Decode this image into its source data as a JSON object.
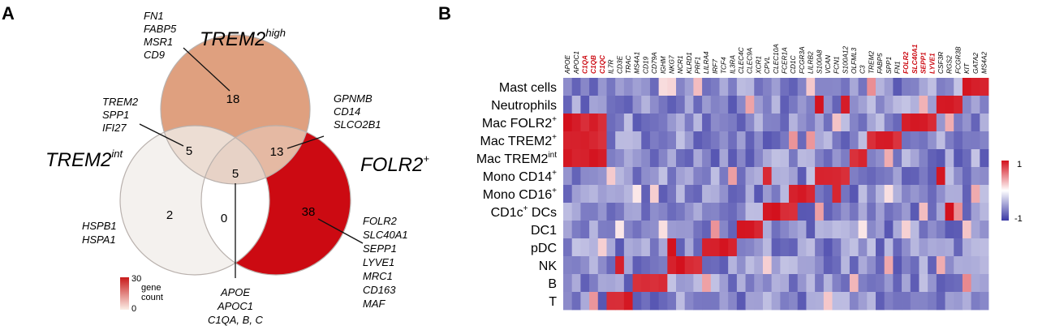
{
  "panels": {
    "a": "A",
    "b": "B"
  },
  "venn": {
    "sets": {
      "high": {
        "name": "TREM2",
        "sup": "high"
      },
      "int": {
        "name": "TREM2",
        "sup": "int"
      },
      "folr": {
        "name": "FOLR2",
        "sup": "+"
      }
    },
    "counts": {
      "high_only": "18",
      "high_int": "5",
      "high_folr": "13",
      "all": "5",
      "int_only": "2",
      "int_folr": "0",
      "folr_only": "38"
    },
    "genes": {
      "high_only": [
        "FN1",
        "FABP5",
        "MSR1",
        "CD9"
      ],
      "high_int": [
        "TREM2",
        "SPP1",
        "IFI27"
      ],
      "high_folr": [
        "GPNMB",
        "CD14",
        "SLCO2B1"
      ],
      "int_only": [
        "HSPB1",
        "HSPA1"
      ],
      "folr_only": [
        "FOLR2",
        "SLC40A1",
        "SEPP1",
        "LYVE1",
        "MRC1",
        "CD163",
        "MAF"
      ],
      "all": [
        "APOE",
        "APOC1",
        "C1QA, B, C"
      ]
    },
    "legend": {
      "max": "30",
      "min": "0",
      "label_1": "gene",
      "label_2": "count"
    },
    "colors": {
      "low": "#f4f1ee",
      "high_only": "#dfa07f",
      "high_int": "#ecddd3",
      "high_folr": "#e5b9a3",
      "all": "#e7d2c6",
      "folr_only": "#cc0a12",
      "int_folr": "#ffffff"
    }
  },
  "heatmap": {
    "rows": [
      "Mast cells",
      "Neutrophils",
      "Mac FOLR2",
      "Mac TREM2",
      "Mac TREM2",
      "Mono CD14",
      "Mono CD16",
      "CD1c",
      "DC1",
      "pDC",
      "NK",
      "B",
      "T"
    ],
    "row_sups": [
      "",
      "",
      "+",
      "+",
      "int",
      "+",
      "+",
      "+",
      "",
      "",
      "",
      "",
      ""
    ],
    "row_suffix": [
      "",
      "",
      "",
      "",
      "",
      "",
      "",
      " DCs",
      "",
      "",
      "",
      "",
      ""
    ],
    "columns": [
      "APOE",
      "APOC1",
      "C1QA",
      "C1QB",
      "C1QC",
      "IL7R",
      "CD3E",
      "TRAC",
      "MS4A1",
      "CD19",
      "CD79A",
      "IGHM",
      "NKG7",
      "NCR1",
      "KLRD1",
      "PRF1",
      "LILRA4",
      "IRF7",
      "TCF4",
      "IL3RA",
      "CLEC4C",
      "CLEC9A",
      "XCR1",
      "CPVL",
      "CLEC10A",
      "FCER1A",
      "CD1C",
      "FCGR3A",
      "LILRB2",
      "S100A8",
      "VCAN",
      "FCN1",
      "S100A12",
      "OLFML3",
      "C3",
      "TREM2",
      "FABP5",
      "SPP1",
      "FN1",
      "FOLR2",
      "SLC40A1",
      "SEPP1",
      "LYVE1",
      "CSF3R",
      "RGS2",
      "FCGR3B",
      "KIT",
      "GATA2",
      "MS4A2"
    ],
    "red_columns": [
      "C1QA",
      "C1QB",
      "C1QC",
      "FOLR2",
      "SLC40A1",
      "SEPP1",
      "LYVE1"
    ],
    "scale": {
      "max": "1",
      "min": "-1"
    },
    "colors": {
      "low": "#3a39a5",
      "mid": "#ffffff",
      "high": "#d3101c",
      "col_red": "#cc0a12"
    }
  }
}
